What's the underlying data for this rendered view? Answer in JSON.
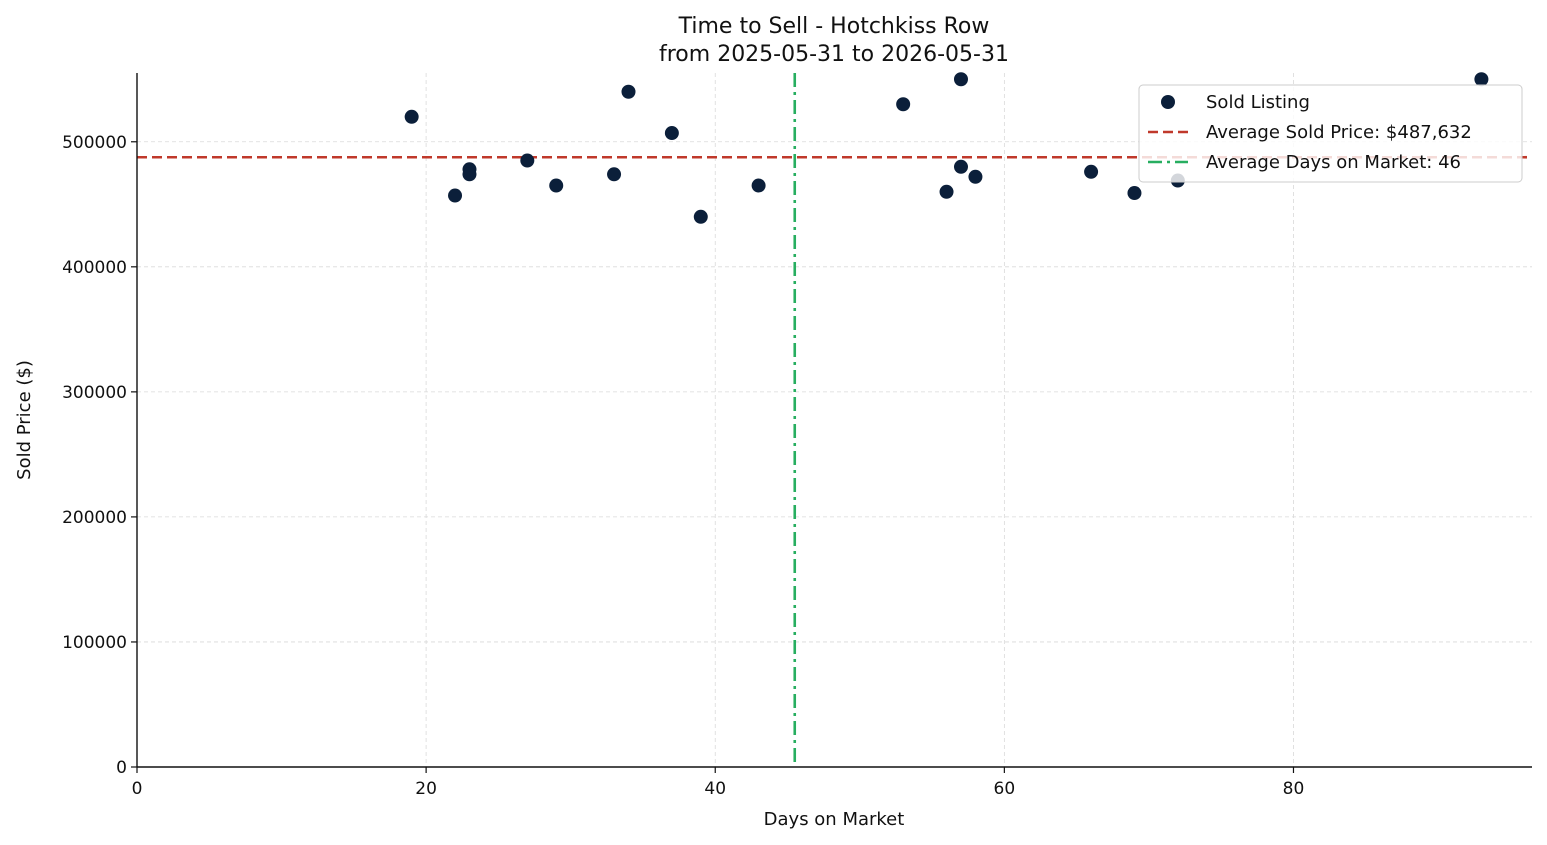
{
  "chart_data": {
    "type": "scatter",
    "title": "Time to Sell - Hotchkiss Row",
    "subtitle": "from 2025-05-31 to 2026-05-31",
    "xlabel": "Days on Market",
    "ylabel": "Sold Price ($)",
    "xlim": [
      0,
      96.5
    ],
    "ylim": [
      0,
      555000
    ],
    "xticks": [
      0,
      20,
      40,
      60,
      80
    ],
    "yticks": [
      0,
      100000,
      200000,
      300000,
      400000,
      500000
    ],
    "grid": true,
    "legend_position": "top-right",
    "series": [
      {
        "name": "Sold Listing",
        "color": "#0b1f3a",
        "points": [
          {
            "x": 19,
            "y": 520000
          },
          {
            "x": 22,
            "y": 457000
          },
          {
            "x": 23,
            "y": 478000
          },
          {
            "x": 23,
            "y": 474000
          },
          {
            "x": 27,
            "y": 485000
          },
          {
            "x": 29,
            "y": 465000
          },
          {
            "x": 33,
            "y": 474000
          },
          {
            "x": 34,
            "y": 540000
          },
          {
            "x": 37,
            "y": 507000
          },
          {
            "x": 39,
            "y": 440000
          },
          {
            "x": 43,
            "y": 465000
          },
          {
            "x": 53,
            "y": 530000
          },
          {
            "x": 56,
            "y": 460000
          },
          {
            "x": 57,
            "y": 550000
          },
          {
            "x": 57,
            "y": 480000
          },
          {
            "x": 58,
            "y": 472000
          },
          {
            "x": 66,
            "y": 476000
          },
          {
            "x": 69,
            "y": 459000
          },
          {
            "x": 72,
            "y": 469000
          },
          {
            "x": 93,
            "y": 550000
          }
        ]
      }
    ],
    "reference_lines": [
      {
        "orientation": "horizontal",
        "value": 487632,
        "label": "Average Sold Price: $487,632",
        "color": "#c0392b",
        "style": "dashed"
      },
      {
        "orientation": "vertical",
        "value": 45.5,
        "label": "Average Days on Market: 46",
        "color": "#27ae60",
        "style": "dashdot"
      }
    ],
    "colors": {
      "points": "#0b1f3a",
      "avg_price_line": "#c0392b",
      "avg_days_line": "#27ae60",
      "grid": "#d9d9d9"
    }
  }
}
